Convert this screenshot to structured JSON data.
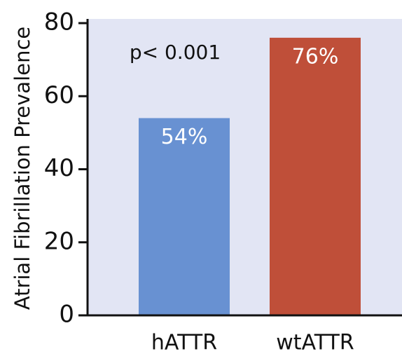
{
  "chart_data": {
    "type": "bar",
    "y_label": "Atrial Fibrillation Prevalence",
    "annotation": "p< 0.001",
    "categories": [
      "hATTR",
      "wtATTR"
    ],
    "values": [
      54,
      76
    ],
    "value_labels": [
      "54%",
      "76%"
    ],
    "colors": [
      "#6891d2",
      "#bf4f39"
    ],
    "background": "#e2e5f4",
    "ylim": [
      0,
      80
    ],
    "yticks": [
      0,
      20,
      40,
      60,
      80
    ]
  }
}
